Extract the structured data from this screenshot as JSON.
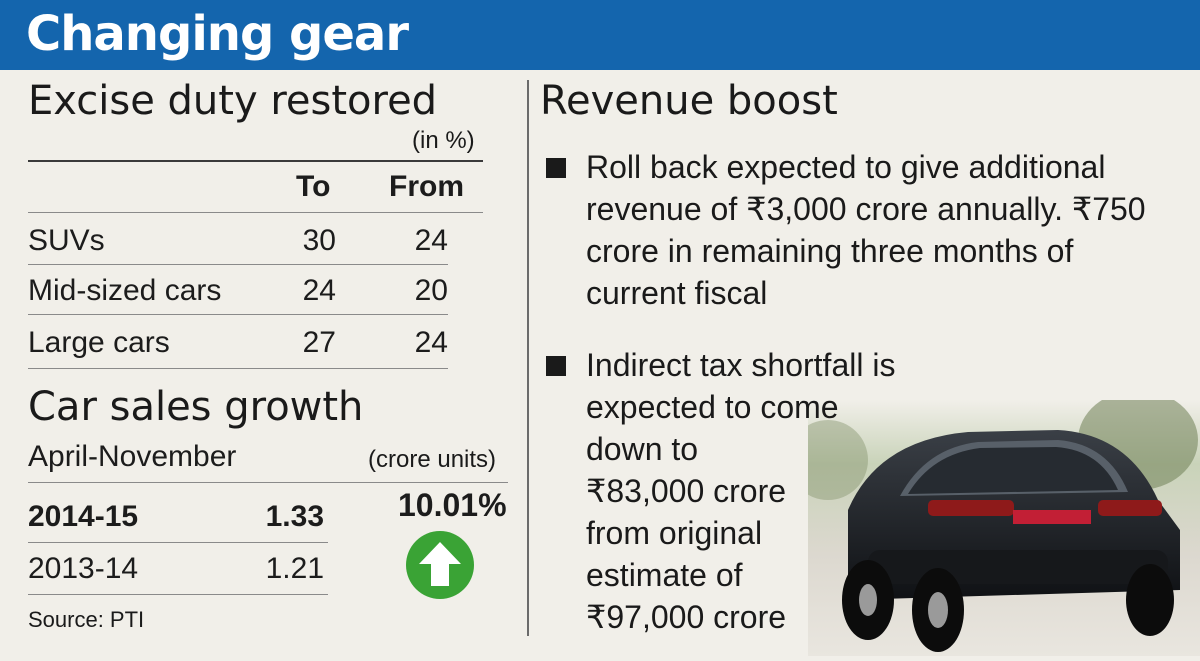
{
  "header": {
    "title": "Changing gear"
  },
  "excise": {
    "heading": "Excise duty restored",
    "unit": "(in %)",
    "col_to": "To",
    "col_from": "From",
    "rows": [
      {
        "label": "SUVs",
        "to": "30",
        "from": "24"
      },
      {
        "label": "Mid-sized cars",
        "to": "24",
        "from": "20"
      },
      {
        "label": "Large cars",
        "to": "27",
        "from": "24"
      }
    ]
  },
  "sales": {
    "heading": "Car sales growth",
    "period": "April-November",
    "unit": "(crore units)",
    "growth": "10.01%",
    "rows": [
      {
        "year": "2014-15",
        "value": "1.33"
      },
      {
        "year": "2013-14",
        "value": "1.21"
      }
    ],
    "arrow_color": "#3aa335"
  },
  "source": "Source: PTI",
  "revenue": {
    "heading": "Revenue boost",
    "bullet1": [
      "Roll back expected to give additional",
      "revenue of ₹3,000 crore annually. ₹750",
      "crore in remaining three months of",
      "current fiscal"
    ],
    "bullet2": [
      "Indirect tax shortfall is",
      "expected to come",
      "down to",
      "₹83,000 crore",
      "from original",
      "estimate of",
      "₹97,000 crore"
    ]
  },
  "colors": {
    "header_bg": "#1465ad",
    "page_bg": "#f1efe9"
  }
}
